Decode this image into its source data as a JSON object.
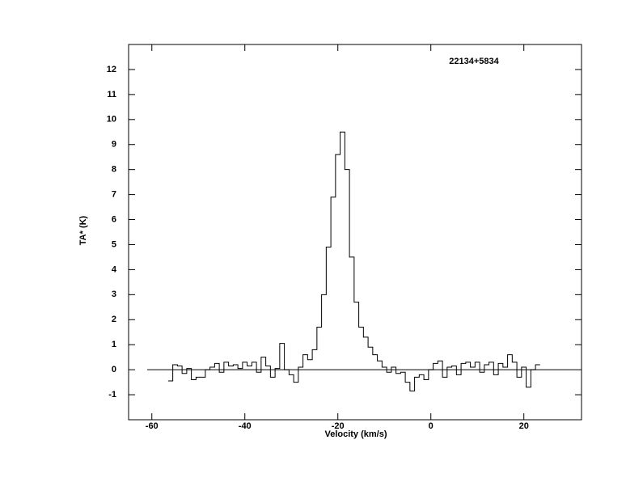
{
  "chart_data": {
    "type": "step",
    "annotation": "22134+5834",
    "x_label": "Velocity (km/s)",
    "y_label": "TA* (K)",
    "xlim": [
      -65,
      32.4
    ],
    "ylim": [
      -2,
      13
    ],
    "xticks": [
      -60,
      -40,
      -20,
      0,
      20
    ],
    "yticks": [
      -1,
      0,
      1,
      2,
      3,
      4,
      5,
      6,
      7,
      8,
      9,
      10,
      11,
      12
    ],
    "color": "#000000",
    "x": [
      -56,
      -55,
      -54,
      -53,
      -52,
      -51,
      -50,
      -49,
      -48,
      -47,
      -46,
      -45,
      -44,
      -43,
      -42,
      -41,
      -40,
      -39,
      -38,
      -37,
      -36,
      -35,
      -34,
      -33,
      -32,
      -31,
      -30,
      -29,
      -28,
      -27,
      -26,
      -25,
      -24,
      -23,
      -22,
      -21,
      -20,
      -19,
      -18,
      -17,
      -16,
      -15,
      -14,
      -13,
      -12,
      -11,
      -10,
      -9,
      -8,
      -7,
      -6,
      -5,
      -4,
      -3,
      -2,
      -1,
      0,
      1,
      2,
      3,
      4,
      5,
      6,
      7,
      8,
      9,
      10,
      11,
      12,
      13,
      14,
      15,
      16,
      17,
      18,
      19,
      20,
      21,
      22,
      23
    ],
    "values": [
      -0.45,
      0.2,
      0.15,
      -0.15,
      0.05,
      -0.4,
      -0.3,
      -0.3,
      0.0,
      0.1,
      0.25,
      -0.1,
      0.3,
      0.15,
      0.2,
      0.05,
      0.3,
      0.15,
      0.3,
      -0.1,
      0.5,
      0.15,
      -0.3,
      0.05,
      1.05,
      0.0,
      -0.2,
      -0.5,
      0.1,
      0.6,
      0.4,
      0.8,
      1.7,
      3.0,
      4.9,
      6.9,
      8.6,
      9.5,
      8.0,
      4.5,
      2.7,
      1.7,
      1.3,
      0.9,
      0.6,
      0.35,
      0.1,
      -0.1,
      0.1,
      -0.15,
      -0.1,
      -0.5,
      -0.85,
      -0.3,
      -0.2,
      -0.4,
      0.0,
      0.25,
      0.35,
      -0.3,
      0.1,
      0.15,
      -0.2,
      0.25,
      0.3,
      0.1,
      0.3,
      -0.1,
      0.2,
      0.3,
      -0.2,
      0.25,
      0.1,
      0.6,
      0.3,
      -0.3,
      0.1,
      -0.7,
      0.0,
      0.2
    ]
  }
}
